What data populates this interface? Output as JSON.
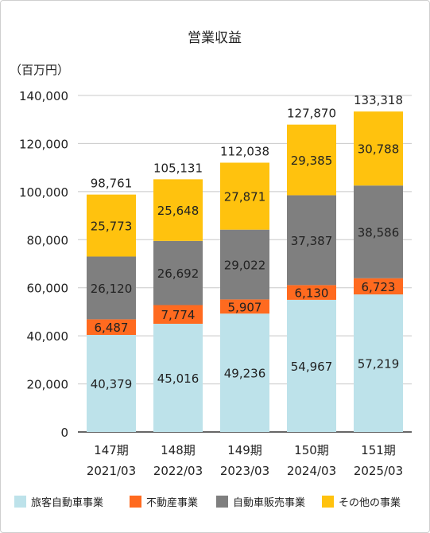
{
  "chart_data": {
    "type": "bar",
    "stacked": true,
    "title": "営業収益",
    "unit_label": "（百万円）",
    "ylim": [
      0,
      140000
    ],
    "y_ticks": [
      "0",
      "20,000",
      "40,000",
      "60,000",
      "80,000",
      "100,000",
      "120,000",
      "140,000"
    ],
    "y_tick_values": [
      0,
      20000,
      40000,
      60000,
      80000,
      100000,
      120000,
      140000
    ],
    "grid": true,
    "legend_position": "bottom",
    "categories": [
      "147期",
      "148期",
      "149期",
      "150期",
      "151期"
    ],
    "category_sub": [
      "2021/03",
      "2022/03",
      "2023/03",
      "2024/03",
      "2025/03"
    ],
    "series": [
      {
        "name": "旅客自動車事業",
        "color": "#bde2ea",
        "values": [
          40379,
          45016,
          49236,
          54967,
          57219
        ],
        "labels": [
          "40,379",
          "45,016",
          "49,236",
          "54,967",
          "57,219"
        ]
      },
      {
        "name": "不動産事業",
        "color": "#ff6a1f",
        "values": [
          6487,
          7774,
          5907,
          6130,
          6723
        ],
        "labels": [
          "6,487",
          "7,774",
          "5,907",
          "6,130",
          "6,723"
        ]
      },
      {
        "name": "自動車販売事業",
        "color": "#7f7f7f",
        "values": [
          26120,
          26692,
          29022,
          37387,
          38586
        ],
        "labels": [
          "26,120",
          "26,692",
          "29,022",
          "37,387",
          "38,586"
        ]
      },
      {
        "name": "その他の事業",
        "color": "#ffc20e",
        "values": [
          25773,
          25648,
          27871,
          29385,
          30788
        ],
        "labels": [
          "25,773",
          "25,648",
          "27,871",
          "29,385",
          "30,788"
        ]
      }
    ],
    "totals": [
      98761,
      105131,
      112038,
      127870,
      133318
    ],
    "total_labels": [
      "98,761",
      "105,131",
      "112,038",
      "127,870",
      "133,318"
    ]
  }
}
